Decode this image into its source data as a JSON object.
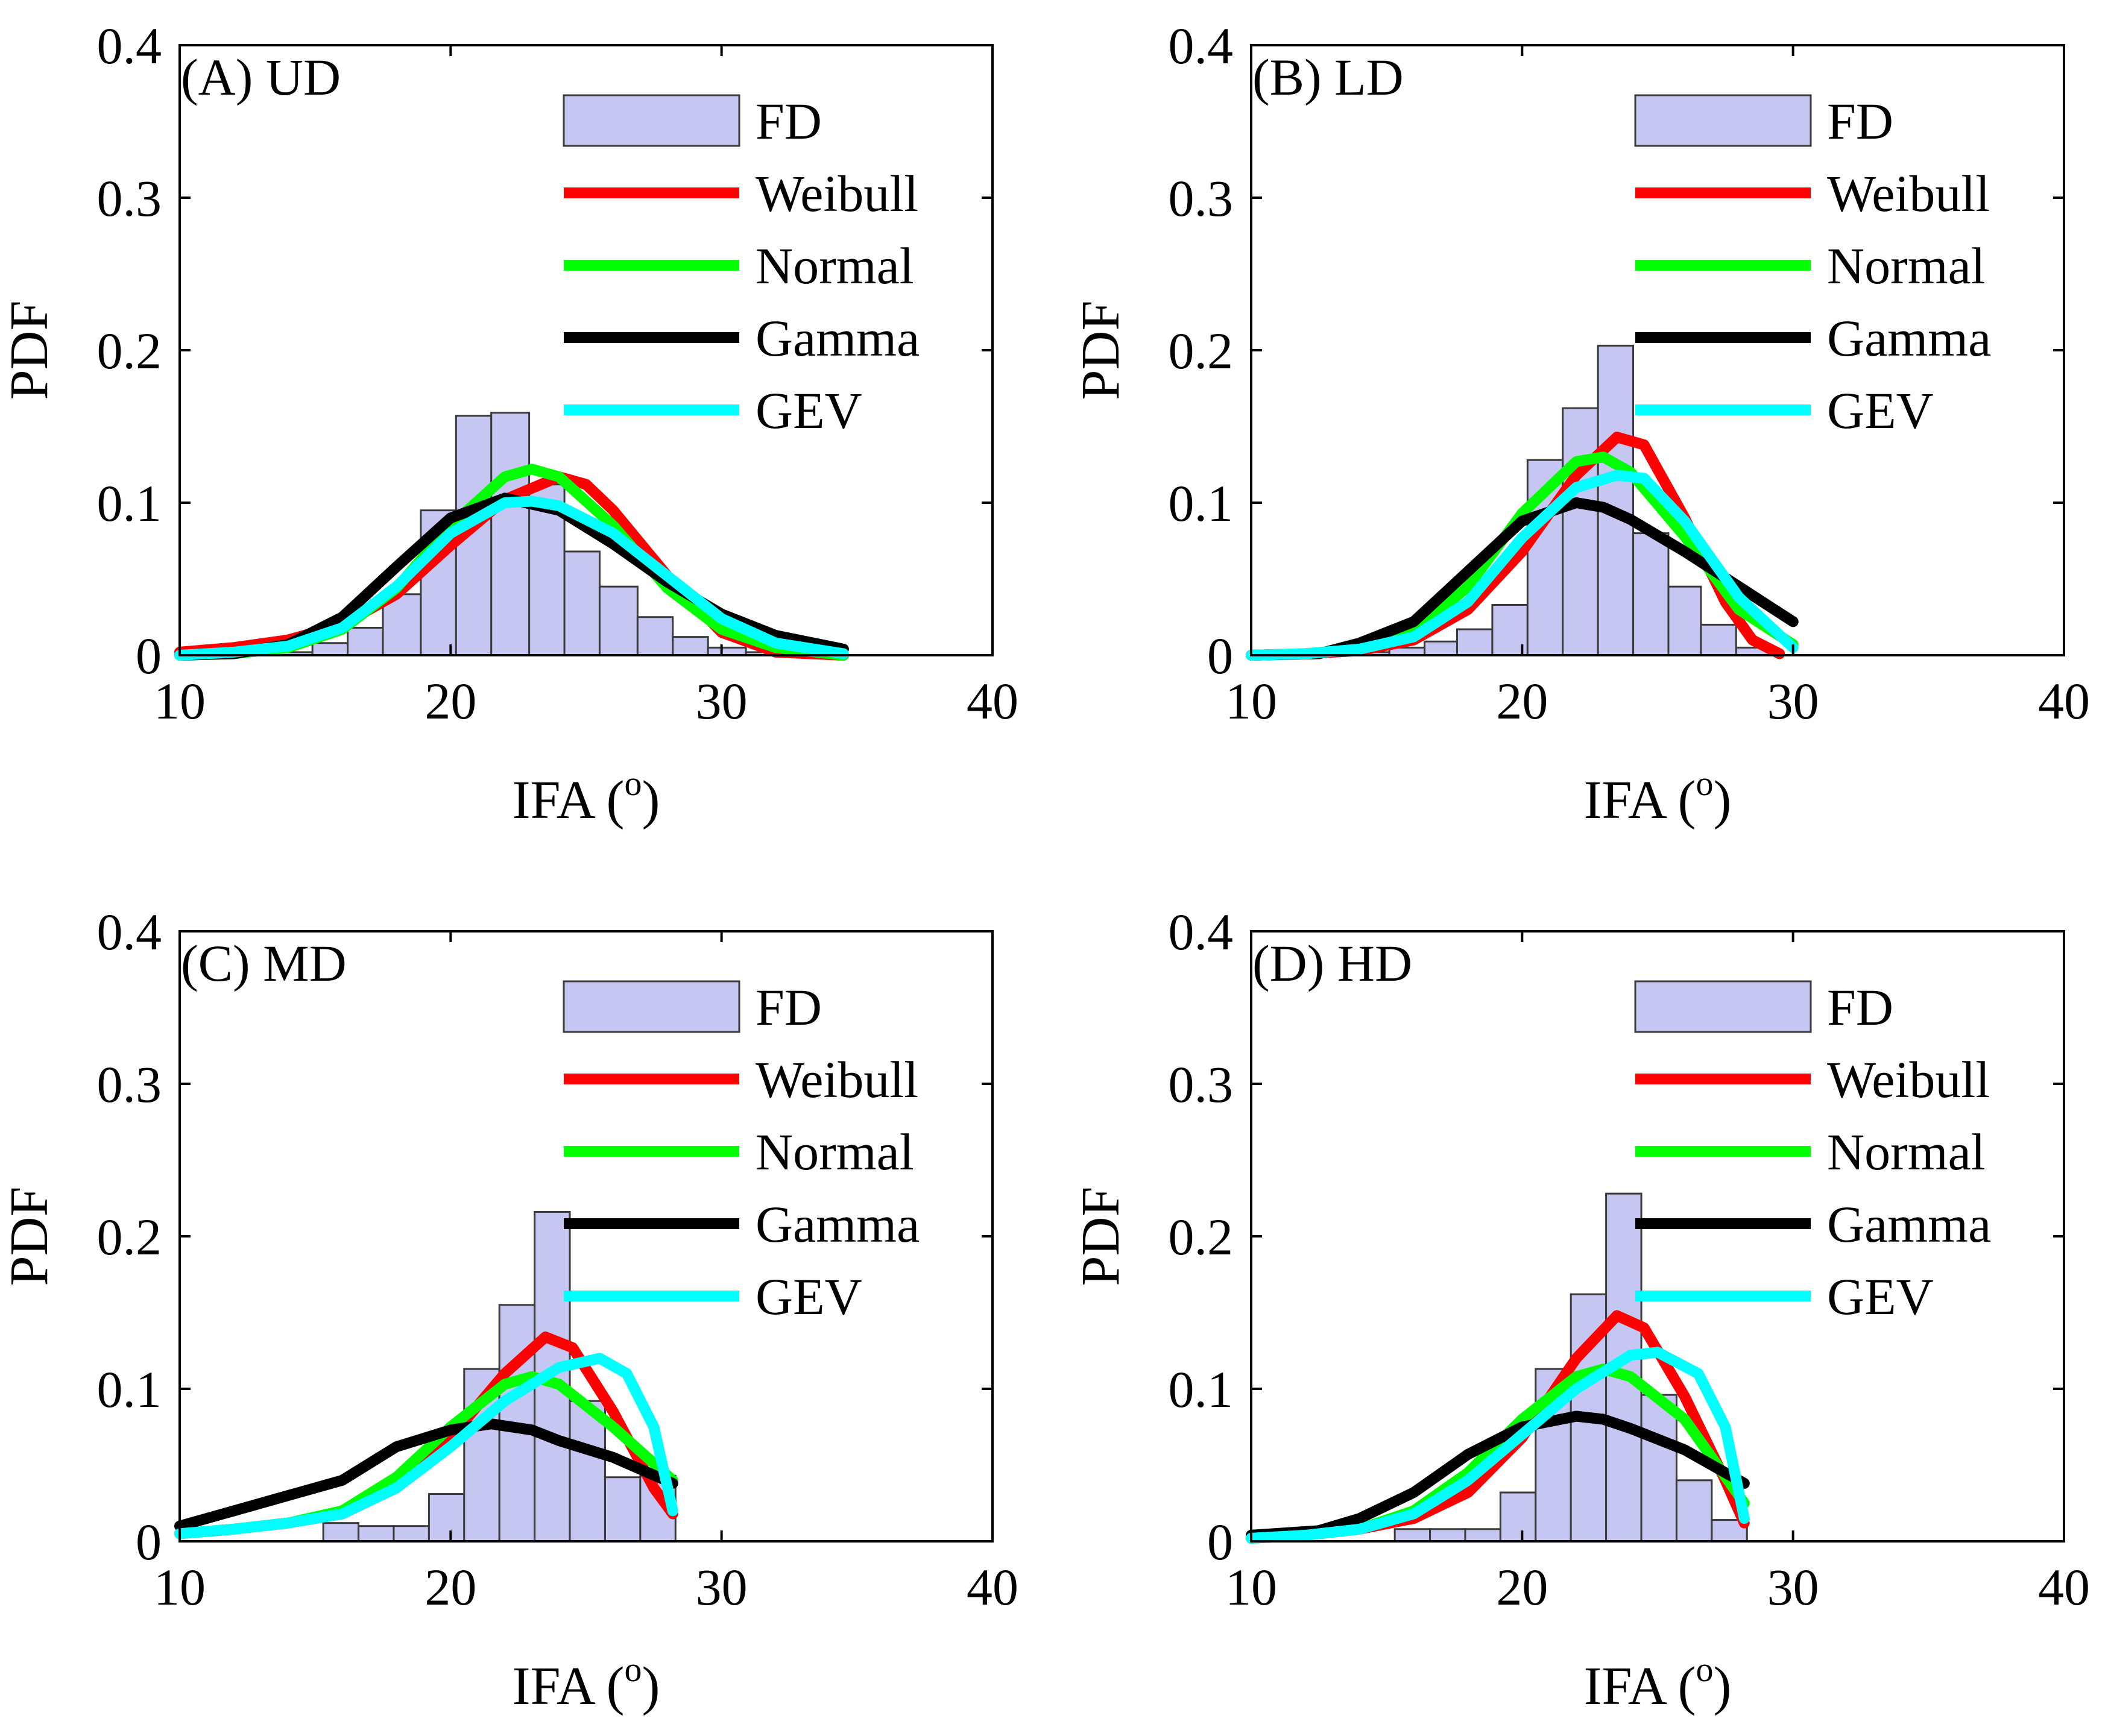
{
  "figure": {
    "colors": {
      "hist_fill": "#c6c6f2",
      "hist_edge": "#3a3a3a",
      "axis": "#000000",
      "background": "#ffffff"
    }
  },
  "chart_data": [
    {
      "type": "bar",
      "panel": "A",
      "title": "(A) UD",
      "xlabel": "IFA (",
      "xlabel_sup": "o",
      "xlabel_close": ")",
      "ylabel": "PDF",
      "xlim": [
        10,
        40
      ],
      "ylim": [
        0,
        0.4
      ],
      "xticks": [
        10,
        20,
        30,
        40
      ],
      "yticks": [
        0,
        0.1,
        0.2,
        0.3,
        0.4
      ],
      "xtick_labels": [
        "10",
        "20",
        "30",
        "40"
      ],
      "ytick_labels": [
        "0",
        "0.1",
        "0.2",
        "0.3",
        "0.4"
      ],
      "legend_position": "top-right",
      "histogram": {
        "name": "FD",
        "bin_edges": [
          13.5,
          14.9,
          16.2,
          17.5,
          18.9,
          20.2,
          21.5,
          22.9,
          24.2,
          25.5,
          26.9,
          28.2,
          29.5,
          30.9,
          32.2
        ],
        "values": [
          0.002,
          0.008,
          0.018,
          0.04,
          0.095,
          0.157,
          0.159,
          0.112,
          0.068,
          0.045,
          0.025,
          0.012,
          0.005,
          0.002
        ]
      },
      "series": [
        {
          "name": "Weibull",
          "color": "#ff0000",
          "x": [
            10,
            12,
            14,
            16,
            18,
            20,
            22,
            24,
            25,
            26,
            28,
            30,
            32,
            34.5
          ],
          "y": [
            0.002,
            0.005,
            0.01,
            0.02,
            0.04,
            0.072,
            0.102,
            0.117,
            0.112,
            0.095,
            0.052,
            0.015,
            0.002,
            0.0
          ]
        },
        {
          "name": "Normal",
          "color": "#00ff00",
          "x": [
            10,
            12,
            14,
            16,
            18,
            20,
            22,
            23,
            24,
            26,
            28,
            30,
            32,
            34.5
          ],
          "y": [
            0.0,
            0.001,
            0.005,
            0.017,
            0.044,
            0.085,
            0.117,
            0.122,
            0.117,
            0.085,
            0.044,
            0.017,
            0.005,
            0.0
          ]
        },
        {
          "name": "Gamma",
          "color": "#000000",
          "x": [
            10,
            12,
            14,
            16,
            18,
            20,
            22,
            24,
            26,
            28,
            30,
            32,
            34.5
          ],
          "y": [
            0.0,
            0.001,
            0.007,
            0.025,
            0.058,
            0.09,
            0.103,
            0.095,
            0.073,
            0.048,
            0.027,
            0.013,
            0.004
          ]
        },
        {
          "name": "GEV",
          "color": "#00ffff",
          "x": [
            10,
            12,
            14,
            16,
            18,
            20,
            22,
            23,
            24,
            26,
            28,
            30,
            32,
            34.5
          ],
          "y": [
            0.0,
            0.002,
            0.006,
            0.018,
            0.045,
            0.08,
            0.1,
            0.101,
            0.098,
            0.08,
            0.052,
            0.024,
            0.008,
            0.001
          ]
        }
      ]
    },
    {
      "type": "bar",
      "panel": "B",
      "title": "(B) LD",
      "xlabel": "IFA (",
      "xlabel_sup": "o",
      "xlabel_close": ")",
      "ylabel": "PDF",
      "xlim": [
        10,
        40
      ],
      "ylim": [
        0,
        0.4
      ],
      "xticks": [
        10,
        20,
        30,
        40
      ],
      "yticks": [
        0,
        0.1,
        0.2,
        0.3,
        0.4
      ],
      "xtick_labels": [
        "10",
        "20",
        "30",
        "40"
      ],
      "ytick_labels": [
        "0",
        "0.1",
        "0.2",
        "0.3",
        "0.4"
      ],
      "legend_position": "top-right",
      "histogram": {
        "name": "FD",
        "bin_edges": [
          12.5,
          13.8,
          15.1,
          16.4,
          17.6,
          18.9,
          20.2,
          21.5,
          22.8,
          24.1,
          25.4,
          26.6,
          27.9,
          29.2
        ],
        "values": [
          0.001,
          0.002,
          0.005,
          0.009,
          0.017,
          0.033,
          0.128,
          0.162,
          0.203,
          0.08,
          0.045,
          0.02,
          0.005
        ]
      },
      "series": [
        {
          "name": "Weibull",
          "color": "#ff0000",
          "x": [
            10,
            12,
            14,
            16,
            18,
            20,
            22,
            23.5,
            24.5,
            26,
            27.5,
            28.5,
            29.5
          ],
          "y": [
            0.0,
            0.001,
            0.003,
            0.01,
            0.03,
            0.068,
            0.118,
            0.143,
            0.138,
            0.09,
            0.035,
            0.01,
            0.001
          ]
        },
        {
          "name": "Normal",
          "color": "#00ff00",
          "x": [
            10,
            12,
            14,
            16,
            18,
            20,
            22,
            23,
            24,
            26,
            28,
            30
          ],
          "y": [
            0.0,
            0.001,
            0.004,
            0.015,
            0.045,
            0.093,
            0.127,
            0.13,
            0.12,
            0.078,
            0.03,
            0.007
          ]
        },
        {
          "name": "Gamma",
          "color": "#000000",
          "x": [
            10,
            12.5,
            14,
            16,
            18,
            20,
            22,
            23,
            24,
            26,
            28,
            30
          ],
          "y": [
            0.0,
            0.001,
            0.008,
            0.022,
            0.055,
            0.088,
            0.1,
            0.097,
            0.089,
            0.068,
            0.045,
            0.022
          ]
        },
        {
          "name": "GEV",
          "color": "#00ffff",
          "x": [
            10,
            12,
            14,
            16,
            18,
            20,
            22,
            23.5,
            24.5,
            26,
            28,
            30
          ],
          "y": [
            0.0,
            0.001,
            0.004,
            0.012,
            0.035,
            0.077,
            0.11,
            0.118,
            0.116,
            0.088,
            0.038,
            0.005
          ]
        }
      ]
    },
    {
      "type": "bar",
      "panel": "C",
      "title": "(C) MD",
      "xlabel": "IFA (",
      "xlabel_sup": "o",
      "xlabel_close": ")",
      "ylabel": "PDF",
      "xlim": [
        10,
        40
      ],
      "ylim": [
        0,
        0.4
      ],
      "xticks": [
        10,
        20,
        30,
        40
      ],
      "yticks": [
        0,
        0.1,
        0.2,
        0.3,
        0.4
      ],
      "xtick_labels": [
        "10",
        "20",
        "30",
        "40"
      ],
      "ytick_labels": [
        "0",
        "0.1",
        "0.2",
        "0.3",
        "0.4"
      ],
      "legend_position": "top-right",
      "histogram": {
        "name": "FD",
        "bin_edges": [
          15.3,
          16.6,
          17.9,
          19.2,
          20.5,
          21.8,
          23.1,
          24.4,
          25.7,
          27.0,
          28.3
        ],
        "values": [
          0.012,
          0.01,
          0.01,
          0.031,
          0.113,
          0.155,
          0.216,
          0.092,
          0.042,
          0.043
        ]
      },
      "series": [
        {
          "name": "Weibull",
          "color": "#ff0000",
          "x": [
            10,
            12,
            14,
            16,
            18,
            20,
            22,
            23.5,
            24.5,
            26,
            27.5,
            28.2
          ],
          "y": [
            0.005,
            0.008,
            0.012,
            0.018,
            0.035,
            0.068,
            0.11,
            0.134,
            0.127,
            0.085,
            0.035,
            0.018
          ]
        },
        {
          "name": "Normal",
          "color": "#00ff00",
          "x": [
            10,
            12,
            14,
            16,
            18,
            20,
            22,
            23,
            24,
            26,
            28.2
          ],
          "y": [
            0.005,
            0.008,
            0.012,
            0.02,
            0.042,
            0.075,
            0.103,
            0.108,
            0.103,
            0.075,
            0.04
          ]
        },
        {
          "name": "Gamma",
          "color": "#000000",
          "x": [
            10,
            12,
            14,
            16,
            18,
            20,
            21.5,
            23,
            24,
            26,
            28.2
          ],
          "y": [
            0.01,
            0.02,
            0.03,
            0.04,
            0.062,
            0.073,
            0.077,
            0.073,
            0.066,
            0.055,
            0.038
          ]
        },
        {
          "name": "GEV",
          "color": "#00ffff",
          "x": [
            10,
            12,
            14,
            16,
            18,
            20,
            22,
            24,
            25.5,
            26.5,
            27.5,
            28.2
          ],
          "y": [
            0.005,
            0.008,
            0.012,
            0.018,
            0.035,
            0.062,
            0.092,
            0.114,
            0.12,
            0.11,
            0.075,
            0.02
          ]
        }
      ]
    },
    {
      "type": "bar",
      "panel": "D",
      "title": "(D) HD",
      "xlabel": "IFA (",
      "xlabel_sup": "o",
      "xlabel_close": ")",
      "ylabel": "PDF",
      "xlim": [
        10,
        40
      ],
      "ylim": [
        0,
        0.4
      ],
      "xticks": [
        10,
        20,
        30,
        40
      ],
      "yticks": [
        0,
        0.1,
        0.2,
        0.3,
        0.4
      ],
      "xtick_labels": [
        "10",
        "20",
        "30",
        "40"
      ],
      "ytick_labels": [
        "0",
        "0.1",
        "0.2",
        "0.3",
        "0.4"
      ],
      "legend_position": "top-right",
      "histogram": {
        "name": "FD",
        "bin_edges": [
          15.3,
          16.6,
          17.9,
          19.2,
          20.5,
          21.8,
          23.1,
          24.4,
          25.7,
          27.0,
          28.3
        ],
        "values": [
          0.008,
          0.008,
          0.008,
          0.032,
          0.113,
          0.162,
          0.228,
          0.096,
          0.04,
          0.014
        ]
      },
      "series": [
        {
          "name": "Weibull",
          "color": "#ff0000",
          "x": [
            10,
            12,
            14,
            16,
            18,
            20,
            22,
            23.5,
            24.5,
            26,
            27.5,
            28.2
          ],
          "y": [
            0.002,
            0.004,
            0.008,
            0.015,
            0.032,
            0.068,
            0.12,
            0.148,
            0.14,
            0.095,
            0.04,
            0.012
          ]
        },
        {
          "name": "Normal",
          "color": "#00ff00",
          "x": [
            10,
            12,
            14,
            16,
            18,
            20,
            22,
            23,
            24,
            26,
            28.2
          ],
          "y": [
            0.002,
            0.004,
            0.008,
            0.02,
            0.045,
            0.08,
            0.108,
            0.113,
            0.108,
            0.08,
            0.025
          ]
        },
        {
          "name": "Gamma",
          "color": "#000000",
          "x": [
            10,
            12.5,
            14,
            16,
            18,
            20,
            22,
            23,
            24,
            26,
            28.2
          ],
          "y": [
            0.004,
            0.007,
            0.015,
            0.032,
            0.057,
            0.075,
            0.082,
            0.08,
            0.074,
            0.06,
            0.038
          ]
        },
        {
          "name": "GEV",
          "color": "#00ffff",
          "x": [
            10,
            12,
            14,
            16,
            18,
            20,
            22,
            24,
            25,
            26.5,
            27.5,
            28.2
          ],
          "y": [
            0.002,
            0.004,
            0.008,
            0.018,
            0.04,
            0.07,
            0.1,
            0.122,
            0.124,
            0.11,
            0.075,
            0.015
          ]
        }
      ]
    }
  ]
}
